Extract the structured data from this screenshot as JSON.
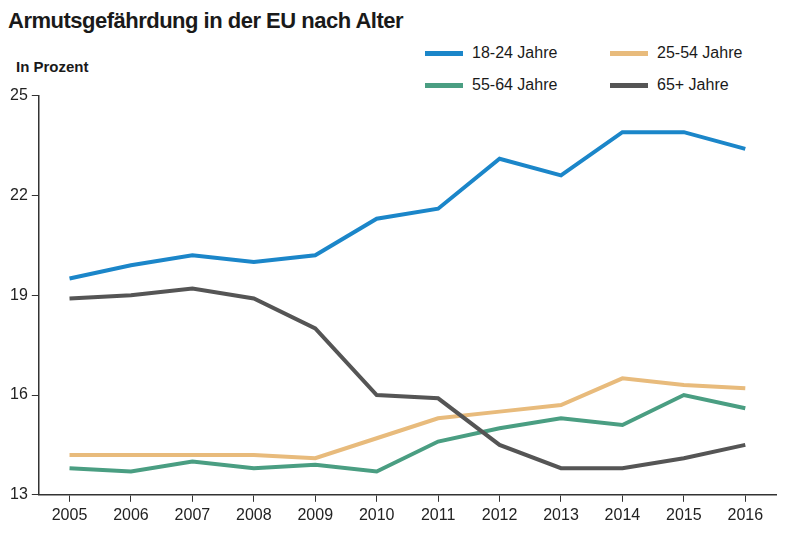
{
  "chart_data": {
    "type": "line",
    "title": "Armutsgefährdung in der EU nach Alter",
    "subtitle": "In Prozent",
    "categories": [
      "2005",
      "2006",
      "2007",
      "2008",
      "2009",
      "2010",
      "2011",
      "2012",
      "2013",
      "2014",
      "2015",
      "2016"
    ],
    "series": [
      {
        "name": "18-24 Jahre",
        "color": "#1b86c9",
        "values": [
          19.5,
          19.9,
          20.2,
          20.0,
          20.2,
          21.3,
          21.6,
          23.1,
          22.6,
          23.9,
          23.9,
          23.4
        ]
      },
      {
        "name": "25-54 Jahre",
        "color": "#e8bb7c",
        "values": [
          14.2,
          14.2,
          14.2,
          14.2,
          14.1,
          14.7,
          15.3,
          15.5,
          15.7,
          16.5,
          16.3,
          16.2
        ]
      },
      {
        "name": "55-64 Jahre",
        "color": "#4a9e82",
        "values": [
          13.8,
          13.7,
          14.0,
          13.8,
          13.9,
          13.7,
          14.6,
          15.0,
          15.3,
          15.1,
          16.0,
          15.6
        ]
      },
      {
        "name": "65+ Jahre",
        "color": "#555555",
        "values": [
          18.9,
          19.0,
          19.2,
          18.9,
          18.0,
          16.0,
          15.9,
          14.5,
          13.8,
          13.8,
          14.1,
          14.5
        ]
      }
    ],
    "ylim": [
      13,
      25
    ],
    "yticks": [
      13,
      16,
      19,
      22,
      25
    ],
    "grid": false,
    "legend": "top-right"
  }
}
